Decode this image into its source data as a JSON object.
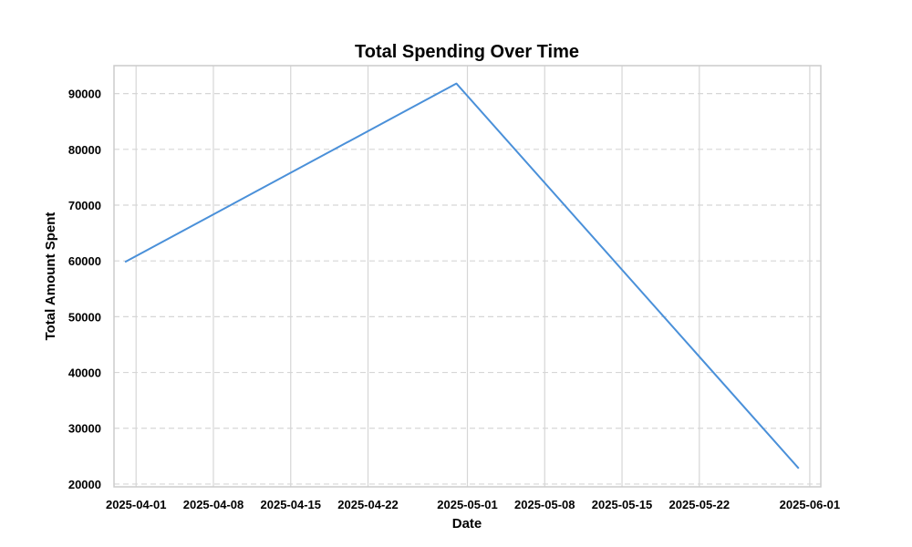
{
  "chart_data": {
    "type": "line",
    "title": "Total Spending Over Time",
    "xlabel": "Date",
    "ylabel": "Total Amount Spent",
    "x_type": "date",
    "xlim": [
      "2025-03-30",
      "2025-06-02"
    ],
    "ylim": [
      19500,
      95000
    ],
    "x_ticks": [
      "2025-04-01",
      "2025-04-08",
      "2025-04-15",
      "2025-04-22",
      "2025-05-01",
      "2025-05-08",
      "2025-05-15",
      "2025-05-22",
      "2025-06-01"
    ],
    "y_ticks": [
      20000,
      30000,
      40000,
      50000,
      60000,
      70000,
      80000,
      90000
    ],
    "grid": {
      "x": true,
      "y": true,
      "y_style": "dashed"
    },
    "series": [
      {
        "color": "#4a90d9",
        "x": [
          "2025-03-31",
          "2025-04-30",
          "2025-05-31"
        ],
        "values": [
          59800,
          91800,
          22800
        ]
      }
    ]
  }
}
